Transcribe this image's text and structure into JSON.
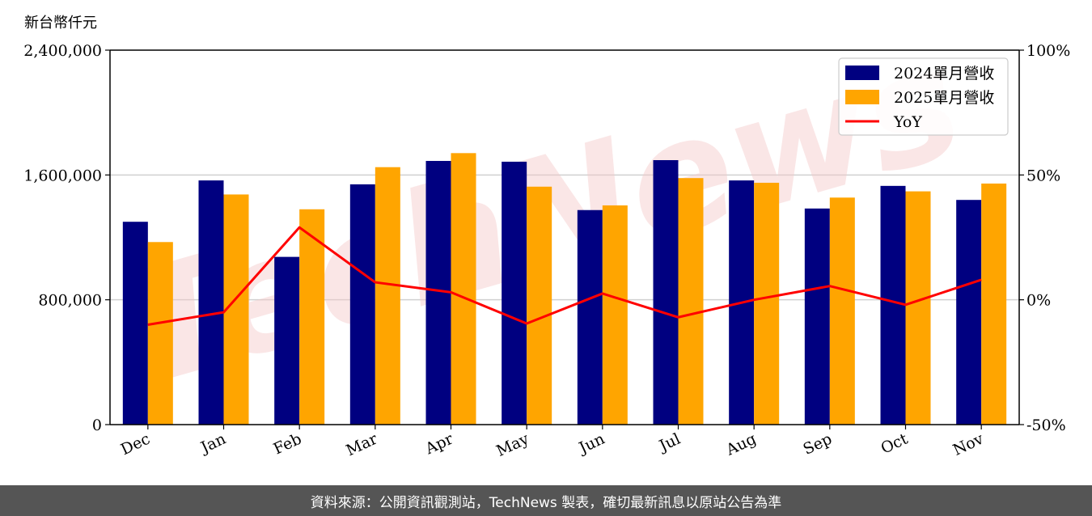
{
  "header": {
    "unit": "新台幣仟元"
  },
  "watermark": {
    "text": "TechNews"
  },
  "footer": {
    "source": "資料來源：公開資訊觀測站，TechNews 製表，確切最新訊息以原站公告為準"
  },
  "chart_data": {
    "type": "bar",
    "categories": [
      "Dec",
      "Jan",
      "Feb",
      "Mar",
      "Apr",
      "May",
      "Jun",
      "Jul",
      "Aug",
      "Sep",
      "Oct",
      "Nov"
    ],
    "series": [
      {
        "name": "2024單月營收",
        "color": "#000080",
        "values": [
          1300000,
          1565000,
          1075000,
          1540000,
          1690000,
          1685000,
          1375000,
          1695000,
          1565000,
          1385000,
          1530000,
          1440000
        ]
      },
      {
        "name": "2025單月營收",
        "color": "#ffa500",
        "values": [
          1170000,
          1475000,
          1380000,
          1650000,
          1740000,
          1525000,
          1405000,
          1580000,
          1550000,
          1455000,
          1495000,
          1545000
        ]
      }
    ],
    "line_series": {
      "name": "YoY",
      "color": "#ff0000",
      "axis": "right",
      "values": [
        -10,
        -5,
        29,
        7,
        3,
        -9.5,
        2.5,
        -7,
        0,
        5.5,
        -2,
        8
      ]
    },
    "ylim": [
      0,
      2400000
    ],
    "y_ticks": [
      "0",
      "800,000",
      "1,600,000",
      "2,400,000"
    ],
    "y_tick_values": [
      0,
      800000,
      1600000,
      2400000
    ],
    "y2lim": [
      -50,
      100
    ],
    "y2_ticks": [
      "-50%",
      "0%",
      "50%",
      "100%"
    ],
    "y2_tick_values": [
      -50,
      0,
      50,
      100
    ],
    "ylabel": "新台幣仟元",
    "grid": "horizontal",
    "legend_position": "top-right"
  }
}
